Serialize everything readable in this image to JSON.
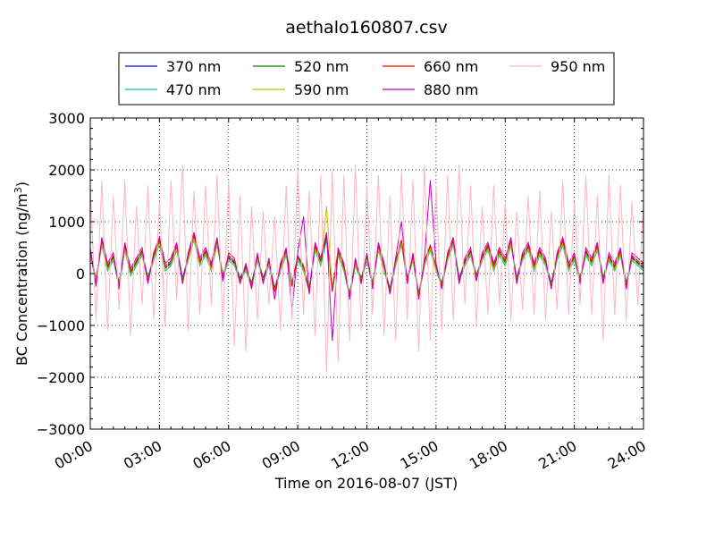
{
  "chart_data": {
    "type": "line",
    "title": "aethalo160807.csv",
    "xlabel": "Time on 2016-08-07 (JST)",
    "ylabel": "BC Concentration (ng/m",
    "ylabel_sup": "3",
    "ylabel_end": ")",
    "xlim_hours": [
      0,
      24
    ],
    "ylim": [
      -3000,
      3000
    ],
    "y_ticks": [
      -3000,
      -2000,
      -1000,
      0,
      1000,
      2000,
      3000
    ],
    "y_tick_labels": [
      "−3000",
      "−2000",
      "−1000",
      "0",
      "1000",
      "2000",
      "3000"
    ],
    "x_ticks_hours": [
      0,
      3,
      6,
      9,
      12,
      15,
      18,
      21,
      24
    ],
    "x_tick_labels": [
      "00:00",
      "03:00",
      "06:00",
      "09:00",
      "12:00",
      "15:00",
      "18:00",
      "21:00",
      "24:00"
    ],
    "grid": true,
    "legend_placement": "top",
    "x_hours": [
      0,
      0.25,
      0.5,
      0.75,
      1,
      1.25,
      1.5,
      1.75,
      2,
      2.25,
      2.5,
      2.75,
      3,
      3.25,
      3.5,
      3.75,
      4,
      4.25,
      4.5,
      4.75,
      5,
      5.25,
      5.5,
      5.75,
      6,
      6.25,
      6.5,
      6.75,
      7,
      7.25,
      7.5,
      7.75,
      8,
      8.25,
      8.5,
      8.75,
      9,
      9.25,
      9.5,
      9.75,
      10,
      10.25,
      10.5,
      10.75,
      11,
      11.25,
      11.5,
      11.75,
      12,
      12.25,
      12.5,
      12.75,
      13,
      13.25,
      13.5,
      13.75,
      14,
      14.25,
      14.5,
      14.75,
      15,
      15.25,
      15.5,
      15.75,
      16,
      16.25,
      16.5,
      16.75,
      17,
      17.25,
      17.5,
      17.75,
      18,
      18.25,
      18.5,
      18.75,
      19,
      19.25,
      19.5,
      19.75,
      20,
      20.25,
      20.5,
      20.75,
      21,
      21.25,
      21.5,
      21.75,
      22,
      22.25,
      22.5,
      22.75,
      23,
      23.25,
      23.5,
      23.75,
      24
    ],
    "series": [
      {
        "name": "370 nm",
        "color": "#0000ff",
        "values": [
          400,
          -100,
          600,
          100,
          300,
          -200,
          500,
          0,
          200,
          400,
          -100,
          300,
          600,
          100,
          200,
          500,
          -100,
          300,
          700,
          200,
          400,
          100,
          600,
          -50,
          300,
          200,
          -100,
          100,
          -200,
          300,
          -100,
          200,
          -300,
          100,
          400,
          -200,
          300,
          100,
          -300,
          500,
          200,
          700,
          -300,
          400,
          100,
          -400,
          200,
          -100,
          300,
          -200,
          500,
          100,
          -300,
          200,
          600,
          -100,
          300,
          -400,
          200,
          500,
          100,
          -200,
          300,
          600,
          -100,
          200,
          400,
          -50,
          300,
          500,
          100,
          400,
          200,
          600,
          -100,
          300,
          500,
          100,
          400,
          200,
          -200,
          300,
          600,
          100,
          300,
          -100,
          400,
          200,
          500,
          -100,
          300,
          100,
          400,
          -200,
          300,
          200,
          100
        ]
      },
      {
        "name": "470 nm",
        "color": "#00bfa5",
        "values": [
          350,
          -150,
          550,
          50,
          250,
          -250,
          450,
          -50,
          150,
          350,
          -150,
          250,
          550,
          50,
          150,
          450,
          -150,
          250,
          650,
          150,
          350,
          50,
          550,
          -100,
          250,
          150,
          -150,
          50,
          -250,
          250,
          -150,
          150,
          -350,
          50,
          350,
          -250,
          250,
          50,
          -350,
          450,
          150,
          650,
          -350,
          350,
          50,
          -450,
          150,
          -150,
          250,
          -250,
          450,
          50,
          -350,
          150,
          550,
          -150,
          250,
          -450,
          150,
          450,
          50,
          -250,
          250,
          550,
          -150,
          150,
          350,
          -100,
          250,
          450,
          50,
          350,
          150,
          550,
          -150,
          250,
          450,
          50,
          350,
          150,
          -250,
          250,
          550,
          50,
          250,
          -150,
          350,
          150,
          450,
          -150,
          250,
          50,
          350,
          -250,
          250,
          150,
          50
        ]
      },
      {
        "name": "520 nm",
        "color": "#008000",
        "values": [
          420,
          -120,
          620,
          120,
          320,
          -180,
          520,
          20,
          220,
          420,
          -80,
          320,
          620,
          120,
          220,
          520,
          -80,
          320,
          720,
          220,
          420,
          120,
          620,
          -30,
          320,
          220,
          -80,
          120,
          -180,
          320,
          -80,
          220,
          -280,
          120,
          420,
          -180,
          320,
          120,
          -280,
          520,
          220,
          720,
          -280,
          420,
          120,
          -380,
          220,
          -80,
          320,
          -180,
          520,
          120,
          -280,
          220,
          620,
          -80,
          320,
          -380,
          220,
          520,
          120,
          -180,
          320,
          620,
          -80,
          220,
          420,
          -30,
          320,
          520,
          120,
          420,
          220,
          620,
          -80,
          320,
          520,
          120,
          420,
          220,
          -180,
          320,
          620,
          120,
          320,
          -80,
          420,
          220,
          520,
          -80,
          320,
          120,
          420,
          -180,
          320,
          220,
          120
        ]
      },
      {
        "name": "590 nm",
        "color": "#bfbf00",
        "values": [
          380,
          -130,
          580,
          80,
          280,
          -220,
          480,
          -20,
          180,
          380,
          -120,
          280,
          580,
          80,
          180,
          480,
          -120,
          280,
          680,
          180,
          380,
          80,
          580,
          -70,
          280,
          180,
          -120,
          80,
          -220,
          280,
          -120,
          180,
          -320,
          80,
          380,
          -220,
          280,
          80,
          -320,
          480,
          180,
          1300,
          -320,
          380,
          80,
          -420,
          180,
          -120,
          280,
          -220,
          480,
          80,
          -320,
          180,
          580,
          -120,
          280,
          -420,
          180,
          480,
          80,
          -220,
          280,
          580,
          -120,
          180,
          380,
          -70,
          280,
          480,
          80,
          380,
          180,
          580,
          -120,
          280,
          480,
          80,
          380,
          180,
          -220,
          280,
          580,
          80,
          280,
          -120,
          380,
          180,
          480,
          -120,
          280,
          80,
          380,
          -220,
          280,
          180,
          80
        ]
      },
      {
        "name": "660 nm",
        "color": "#ff0000",
        "values": [
          450,
          -200,
          650,
          150,
          350,
          -250,
          550,
          50,
          250,
          450,
          -150,
          350,
          650,
          150,
          250,
          550,
          -150,
          350,
          750,
          250,
          450,
          150,
          650,
          -100,
          350,
          250,
          -150,
          150,
          -250,
          350,
          -150,
          250,
          -350,
          150,
          450,
          -250,
          350,
          150,
          -350,
          550,
          250,
          750,
          -350,
          450,
          150,
          -450,
          250,
          -150,
          350,
          -250,
          550,
          150,
          -350,
          250,
          650,
          -150,
          350,
          -450,
          250,
          550,
          150,
          -250,
          350,
          650,
          -150,
          250,
          450,
          -100,
          350,
          550,
          150,
          450,
          250,
          650,
          -150,
          350,
          550,
          150,
          450,
          250,
          -250,
          350,
          650,
          150,
          350,
          -150,
          450,
          250,
          550,
          -150,
          350,
          150,
          450,
          -250,
          350,
          250,
          150
        ]
      },
      {
        "name": "880 nm",
        "color": "#bf00bf",
        "values": [
          500,
          -250,
          700,
          200,
          400,
          -300,
          600,
          100,
          300,
          500,
          -200,
          400,
          700,
          200,
          300,
          600,
          -200,
          400,
          800,
          300,
          500,
          200,
          700,
          -150,
          400,
          300,
          -200,
          200,
          -300,
          400,
          -200,
          300,
          -500,
          200,
          500,
          -700,
          400,
          1100,
          -400,
          600,
          300,
          800,
          -1300,
          500,
          200,
          -500,
          300,
          -200,
          400,
          -300,
          600,
          200,
          -400,
          300,
          1000,
          -200,
          400,
          -500,
          300,
          1800,
          200,
          -300,
          400,
          700,
          -200,
          300,
          500,
          -150,
          400,
          600,
          200,
          500,
          300,
          700,
          -200,
          400,
          600,
          200,
          500,
          300,
          -300,
          400,
          700,
          200,
          400,
          -200,
          500,
          300,
          600,
          -200,
          400,
          200,
          500,
          -300,
          400,
          300,
          200
        ]
      },
      {
        "name": "950 nm",
        "color": "#ffb6c1",
        "values": [
          1700,
          -900,
          1800,
          -1100,
          1500,
          -700,
          1800,
          -1200,
          1300,
          -600,
          1700,
          -900,
          1400,
          -1000,
          1800,
          -500,
          2100,
          -1100,
          1600,
          -800,
          1700,
          -600,
          1900,
          -1000,
          1800,
          -1400,
          1500,
          -1500,
          1300,
          -900,
          1200,
          -600,
          1100,
          -1100,
          1700,
          -900,
          2000,
          -800,
          1600,
          -1200,
          1900,
          -1900,
          2000,
          -1700,
          1900,
          -1300,
          2100,
          -1100,
          1700,
          -800,
          1900,
          -1200,
          1500,
          -1300,
          2000,
          -900,
          1800,
          -1500,
          2100,
          -1300,
          1700,
          -1100,
          1900,
          -900,
          2100,
          -600,
          1700,
          -1000,
          1300,
          -800,
          1700,
          -600,
          1400,
          -900,
          1200,
          -700,
          1500,
          -800,
          1600,
          -900,
          1200,
          -700,
          1800,
          -800,
          1400,
          -600,
          1900,
          -800,
          1500,
          -1300,
          1900,
          -800,
          1700,
          -900,
          1400,
          -600,
          1300
        ]
      }
    ]
  }
}
